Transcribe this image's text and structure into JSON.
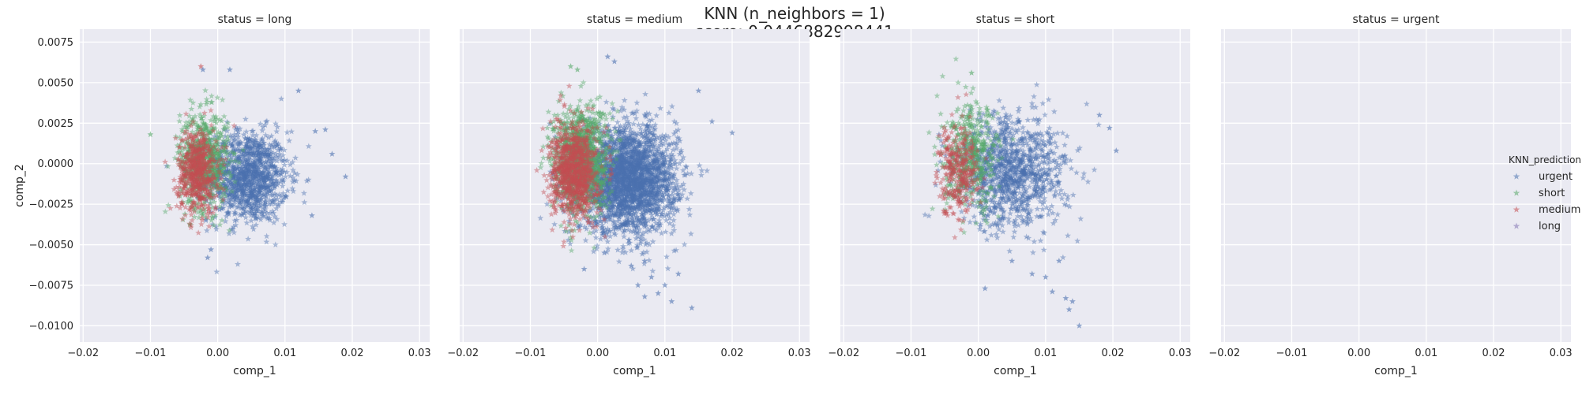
{
  "chart_data": {
    "type": "scatter",
    "suptitle": [
      "KNN (n_neighbors = 1)",
      "score: 0.0446882998441"
    ],
    "xlabel": "comp_1",
    "ylabel": "comp_2",
    "xlim": [
      -0.0205,
      0.0315
    ],
    "ylim": [
      -0.011,
      0.0083
    ],
    "x_ticks": [
      -0.02,
      -0.01,
      0.0,
      0.01,
      0.02,
      0.03
    ],
    "x_tick_labels": [
      "−0.02",
      "−0.01",
      "0.00",
      "0.01",
      "0.02",
      "0.03"
    ],
    "y_ticks": [
      0.0075,
      0.005,
      0.0025,
      0.0,
      -0.0025,
      -0.005,
      -0.0075,
      -0.01
    ],
    "y_tick_labels": [
      "0.0075",
      "0.0050",
      "0.0025",
      "0.0000",
      "−0.0025",
      "−0.0050",
      "−0.0075",
      "−0.0100"
    ],
    "grid": true,
    "marker": "star",
    "legend": {
      "title": "KNN_prediction",
      "placement": "right",
      "entries": [
        {
          "label": "urgent",
          "color": "#4C72B0"
        },
        {
          "label": "short",
          "color": "#55A868"
        },
        {
          "label": "medium",
          "color": "#C44E52"
        },
        {
          "label": "long",
          "color": "#8172B2"
        }
      ]
    },
    "panels": [
      {
        "title": "status = long",
        "clusters": [
          {
            "series": "urgent",
            "n": 1200,
            "cx": 0.0045,
            "cy": -0.0008,
            "sx": 0.003,
            "sy": 0.0014
          },
          {
            "series": "short",
            "n": 700,
            "cx": -0.002,
            "cy": 0.0002,
            "sx": 0.0018,
            "sy": 0.0015
          },
          {
            "series": "medium",
            "n": 550,
            "cx": -0.003,
            "cy": -0.0005,
            "sx": 0.0015,
            "sy": 0.0013
          }
        ],
        "outliers": [
          {
            "series": "medium",
            "x": -0.0025,
            "y": 0.006
          },
          {
            "series": "urgent",
            "x": 0.0018,
            "y": 0.0058
          },
          {
            "series": "urgent",
            "x": -0.0022,
            "y": 0.0058
          },
          {
            "series": "short",
            "x": -0.01,
            "y": 0.0018
          },
          {
            "series": "urgent",
            "x": 0.019,
            "y": -0.0008
          },
          {
            "series": "urgent",
            "x": 0.017,
            "y": 0.0006
          },
          {
            "series": "urgent",
            "x": 0.016,
            "y": 0.0021
          },
          {
            "series": "urgent",
            "x": 0.0145,
            "y": 0.002
          },
          {
            "series": "urgent",
            "x": 0.012,
            "y": 0.0045
          },
          {
            "series": "urgent",
            "x": -0.001,
            "y": -0.0053
          },
          {
            "series": "urgent",
            "x": -0.0015,
            "y": -0.0058
          },
          {
            "series": "urgent",
            "x": 0.014,
            "y": -0.0032
          }
        ]
      },
      {
        "title": "status = medium",
        "clusters": [
          {
            "series": "urgent",
            "n": 2600,
            "cx": 0.0045,
            "cy": -0.001,
            "sx": 0.0036,
            "sy": 0.0016
          },
          {
            "series": "short",
            "n": 1100,
            "cx": -0.0025,
            "cy": 0.0003,
            "sx": 0.002,
            "sy": 0.0016
          },
          {
            "series": "medium",
            "n": 900,
            "cx": -0.0035,
            "cy": -0.0005,
            "sx": 0.0017,
            "sy": 0.0014
          }
        ],
        "outliers": [
          {
            "series": "urgent",
            "x": 0.0015,
            "y": 0.0066
          },
          {
            "series": "urgent",
            "x": 0.0025,
            "y": 0.0063
          },
          {
            "series": "short",
            "x": -0.004,
            "y": 0.006
          },
          {
            "series": "short",
            "x": -0.003,
            "y": 0.0058
          },
          {
            "series": "urgent",
            "x": 0.02,
            "y": 0.0019
          },
          {
            "series": "urgent",
            "x": 0.017,
            "y": 0.0026
          },
          {
            "series": "urgent",
            "x": 0.015,
            "y": 0.0045
          },
          {
            "series": "urgent",
            "x": 0.007,
            "y": -0.006
          },
          {
            "series": "urgent",
            "x": 0.005,
            "y": -0.0063
          },
          {
            "series": "urgent",
            "x": 0.001,
            "y": -0.0055
          },
          {
            "series": "urgent",
            "x": -0.002,
            "y": -0.0065
          },
          {
            "series": "urgent",
            "x": 0.008,
            "y": -0.007
          },
          {
            "series": "urgent",
            "x": 0.01,
            "y": -0.0075
          },
          {
            "series": "urgent",
            "x": 0.009,
            "y": -0.008
          },
          {
            "series": "urgent",
            "x": 0.011,
            "y": -0.0085
          },
          {
            "series": "urgent",
            "x": 0.014,
            "y": -0.0089
          },
          {
            "series": "urgent",
            "x": 0.007,
            "y": -0.0082
          },
          {
            "series": "urgent",
            "x": 0.012,
            "y": -0.0068
          },
          {
            "series": "urgent",
            "x": 0.006,
            "y": -0.0075
          }
        ]
      },
      {
        "title": "status = short",
        "clusters": [
          {
            "series": "urgent",
            "n": 1100,
            "cx": 0.005,
            "cy": -0.0005,
            "sx": 0.004,
            "sy": 0.0017
          },
          {
            "series": "short",
            "n": 450,
            "cx": -0.001,
            "cy": 0.0003,
            "sx": 0.002,
            "sy": 0.0016
          },
          {
            "series": "medium",
            "n": 300,
            "cx": -0.003,
            "cy": -0.0003,
            "sx": 0.0015,
            "sy": 0.0014
          }
        ],
        "outliers": [
          {
            "series": "short",
            "x": -0.001,
            "y": 0.0056
          },
          {
            "series": "urgent",
            "x": 0.0205,
            "y": 0.0008
          },
          {
            "series": "urgent",
            "x": 0.0195,
            "y": 0.0022
          },
          {
            "series": "urgent",
            "x": 0.018,
            "y": 0.003
          },
          {
            "series": "urgent",
            "x": 0.015,
            "y": -0.01
          },
          {
            "series": "urgent",
            "x": 0.014,
            "y": -0.0085
          },
          {
            "series": "urgent",
            "x": 0.013,
            "y": -0.0083
          },
          {
            "series": "urgent",
            "x": 0.011,
            "y": -0.0079
          },
          {
            "series": "urgent",
            "x": 0.01,
            "y": -0.007
          },
          {
            "series": "urgent",
            "x": 0.001,
            "y": -0.0077
          },
          {
            "series": "urgent",
            "x": 0.005,
            "y": -0.006
          },
          {
            "series": "urgent",
            "x": 0.008,
            "y": -0.0068
          },
          {
            "series": "urgent",
            "x": 0.012,
            "y": -0.006
          },
          {
            "series": "urgent",
            "x": 0.0135,
            "y": -0.009
          }
        ]
      },
      {
        "title": "status = urgent",
        "clusters": [],
        "outliers": []
      }
    ]
  }
}
